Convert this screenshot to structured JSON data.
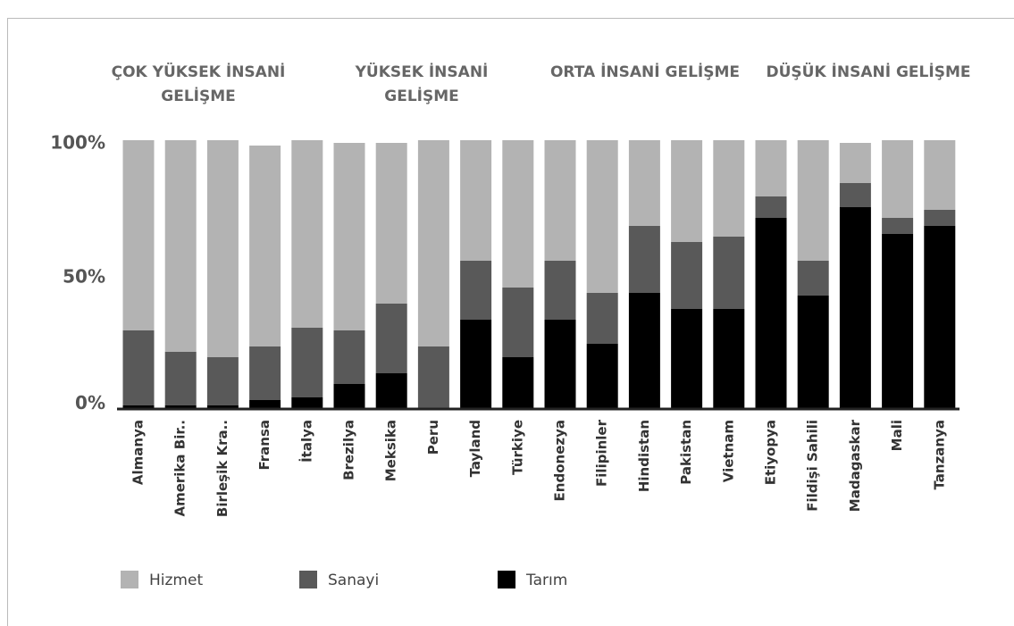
{
  "chart_data": {
    "type": "stacked_bar",
    "groups": [
      {
        "name": "ÇOK YÜKSEK İNSANİ GELİŞME",
        "size": 5
      },
      {
        "name": "YÜKSEK İNSANİ GELİŞME",
        "size": 5
      },
      {
        "name": "ORTA İNSANİ GELİŞME",
        "size": 5
      },
      {
        "name": "DÜŞÜK İNSANİ GELİŞME",
        "size": 5
      }
    ],
    "categories": [
      "Almanya",
      "Amerika Bir..",
      "Birleşik Kra..",
      "Fransa",
      "İtalya",
      "Brezilya",
      "Meksika",
      "Peru",
      "Tayland",
      "Türkiye",
      "Endonezya",
      "Filipinler",
      "Hindistan",
      "Pakistan",
      "Vietnam",
      "Etiyopya",
      "Fildişi Sahili",
      "Madagaskar",
      "Mali",
      "Tanzanya"
    ],
    "series": [
      {
        "name": "Hizmet",
        "color": "#b3b3b3",
        "values": [
          71,
          79,
          81,
          75,
          70,
          70,
          60,
          77,
          45,
          55,
          45,
          57,
          32,
          38,
          36,
          21,
          45,
          15,
          29,
          26
        ]
      },
      {
        "name": "Sanayi",
        "color": "#595959",
        "values": [
          28,
          20,
          18,
          20,
          26,
          20,
          26,
          23,
          22,
          26,
          22,
          19,
          25,
          25,
          27,
          8,
          13,
          9,
          6,
          6
        ]
      },
      {
        "name": "Tarım",
        "color": "#000000",
        "values": [
          1,
          1,
          1,
          3,
          4,
          9,
          13,
          0,
          33,
          19,
          33,
          24,
          43,
          37,
          37,
          71,
          42,
          75,
          65,
          68
        ]
      }
    ],
    "ylim": [
      0,
      100
    ],
    "yticks": [
      {
        "value": 0,
        "label": "0%"
      },
      {
        "value": 50,
        "label": "50%"
      },
      {
        "value": 100,
        "label": "100%"
      }
    ]
  }
}
